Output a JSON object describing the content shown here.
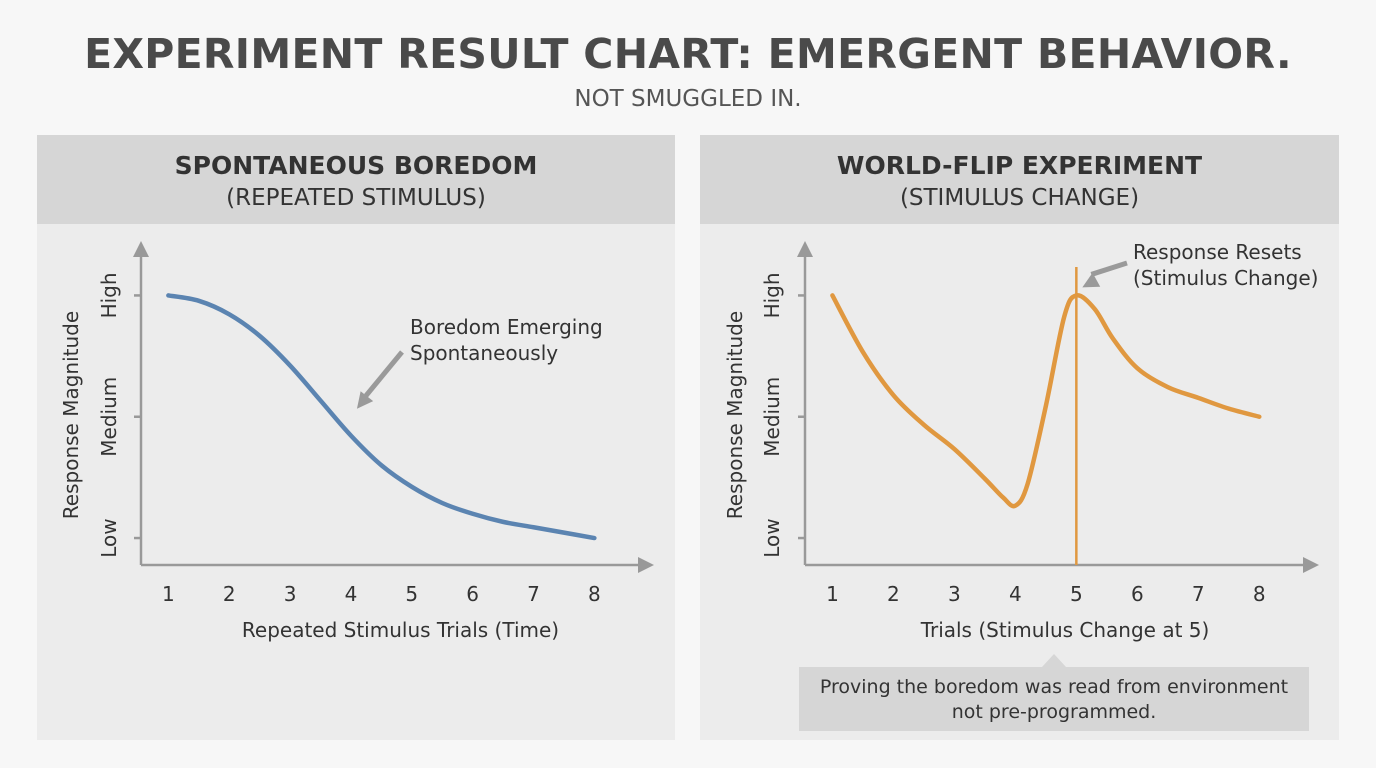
{
  "title": "EXPERIMENT RESULT CHART: EMERGENT BEHAVIOR.",
  "subtitle": "NOT SMUGGLED IN.",
  "colors": {
    "background": "#f7f7f7",
    "panel": "#ececec",
    "header": "#d6d6d6",
    "axis": "#999999",
    "blue_series": "#5b84b1",
    "orange_series": "#e09840",
    "arrow": "#9a9a9a"
  },
  "note": {
    "line1": "Proving the boredom was read from environment",
    "line2": "not pre-programmed."
  },
  "chart_data": [
    {
      "type": "line",
      "title": "SPONTANEOUS BOREDOM",
      "subtitle": "(REPEATED STIMULUS)",
      "xlabel": "Repeated Stimulus Trials (Time)",
      "ylabel": "Response Magnitude",
      "x": [
        1,
        2,
        3,
        4,
        5,
        6,
        7,
        8
      ],
      "xlim": [
        0.55,
        8.75
      ],
      "ylim": [
        0,
        1.15
      ],
      "ytick_values": [
        0.1,
        0.55,
        1.0
      ],
      "ytick_labels": [
        "Low",
        "Medium",
        "High"
      ],
      "grid": false,
      "series": [
        {
          "color": "#5b84b1",
          "x": [
            1,
            1.5,
            2,
            2.5,
            3,
            3.5,
            4,
            4.5,
            5,
            5.5,
            6,
            6.5,
            7,
            7.5,
            8
          ],
          "values": [
            1.0,
            0.98,
            0.93,
            0.85,
            0.74,
            0.61,
            0.48,
            0.37,
            0.29,
            0.23,
            0.19,
            0.16,
            0.14,
            0.12,
            0.1
          ]
        }
      ],
      "annotations": [
        {
          "text": [
            "Boredom Emerging",
            "Spontaneously"
          ],
          "target_x": 4,
          "target_y": 0.55
        }
      ]
    },
    {
      "type": "line",
      "title": "WORLD-FLIP EXPERIMENT",
      "subtitle": "(STIMULUS CHANGE)",
      "xlabel": "Trials (Stimulus Change at 5)",
      "ylabel": "Response Magnitude",
      "x": [
        1,
        2,
        3,
        4,
        5,
        6,
        7,
        8
      ],
      "xlim": [
        0.55,
        8.75
      ],
      "ylim": [
        0,
        1.15
      ],
      "ytick_values": [
        0.1,
        0.55,
        1.0
      ],
      "ytick_labels": [
        "Low",
        "Medium",
        "High"
      ],
      "grid": false,
      "vline_x": 5,
      "series": [
        {
          "color": "#e09840",
          "x": [
            1,
            1.5,
            2,
            2.5,
            3,
            3.5,
            3.8,
            4,
            4.2,
            4.5,
            4.8,
            5,
            5.3,
            5.6,
            6,
            6.5,
            7,
            7.5,
            8
          ],
          "values": [
            1.0,
            0.79,
            0.63,
            0.52,
            0.43,
            0.32,
            0.25,
            0.22,
            0.3,
            0.59,
            0.92,
            1.0,
            0.95,
            0.84,
            0.73,
            0.66,
            0.62,
            0.58,
            0.55
          ]
        }
      ],
      "annotations": [
        {
          "text": [
            "Response Resets",
            "(Stimulus Change)"
          ],
          "target_x": 5,
          "target_y": 1.0
        }
      ]
    }
  ]
}
